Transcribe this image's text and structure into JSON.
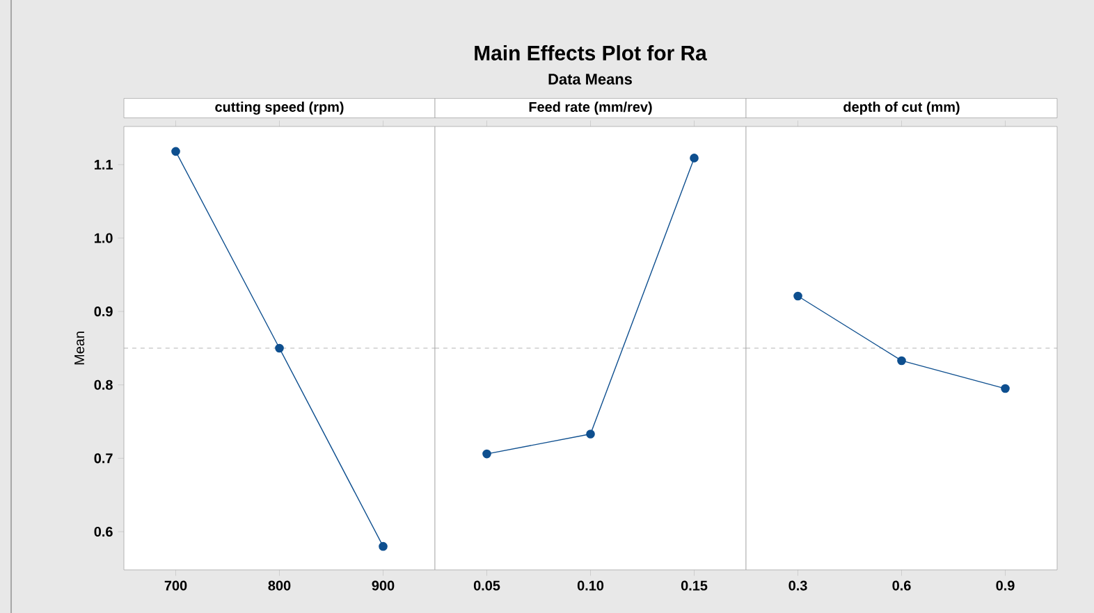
{
  "chart_data": [
    {
      "type": "other",
      "title": "Main Effects Plot for Ra",
      "subtitle": "Data Means"
    },
    {
      "type": "line",
      "title": "cutting speed (rpm)",
      "ylabel": "Mean",
      "x": [
        700,
        800,
        900
      ],
      "values": [
        1.118,
        0.85,
        0.58
      ],
      "color": "#0e4f8f",
      "marker": "circle",
      "line_style": "solid",
      "xlim": [
        650,
        950
      ],
      "xticks": [
        700,
        800,
        900
      ],
      "ylim": [
        0.548,
        1.152
      ],
      "yticks": [
        0.6,
        0.7,
        0.8,
        0.9,
        {
          "value": 1,
          "label": "1.0"
        },
        1.1
      ],
      "ref_lines": [
        {
          "axis": "y",
          "value": 0.85,
          "color": "#a0a0a0",
          "line_style": "dashed"
        }
      ]
    },
    {
      "type": "line",
      "title": "Feed rate (mm/rev)",
      "x": [
        0.05,
        0.1,
        0.15
      ],
      "values": [
        0.706,
        0.733,
        1.109
      ],
      "color": "#0e4f8f",
      "marker": "circle",
      "line_style": "solid",
      "xlim": [
        0.025,
        0.175
      ],
      "xticks": [
        0.05,
        {
          "value": 0.1,
          "label": "0.10"
        },
        0.15
      ],
      "ylim": [
        0.548,
        1.152
      ],
      "tick_labels": "x",
      "ref_lines": [
        {
          "axis": "y",
          "value": 0.85,
          "color": "#a0a0a0",
          "line_style": "dashed"
        }
      ]
    },
    {
      "type": "line",
      "title": "depth of cut (mm)",
      "x": [
        0.3,
        0.6,
        0.9
      ],
      "values": [
        0.921,
        0.833,
        0.795
      ],
      "color": "#0e4f8f",
      "marker": "circle",
      "line_style": "solid",
      "xlim": [
        0.15,
        1.05
      ],
      "xticks": [
        0.3,
        0.6,
        0.9
      ],
      "ylim": [
        0.548,
        1.152
      ],
      "tick_labels": "x",
      "ref_lines": [
        {
          "axis": "y",
          "value": 0.85,
          "color": "#a0a0a0",
          "line_style": "dashed"
        }
      ]
    }
  ]
}
